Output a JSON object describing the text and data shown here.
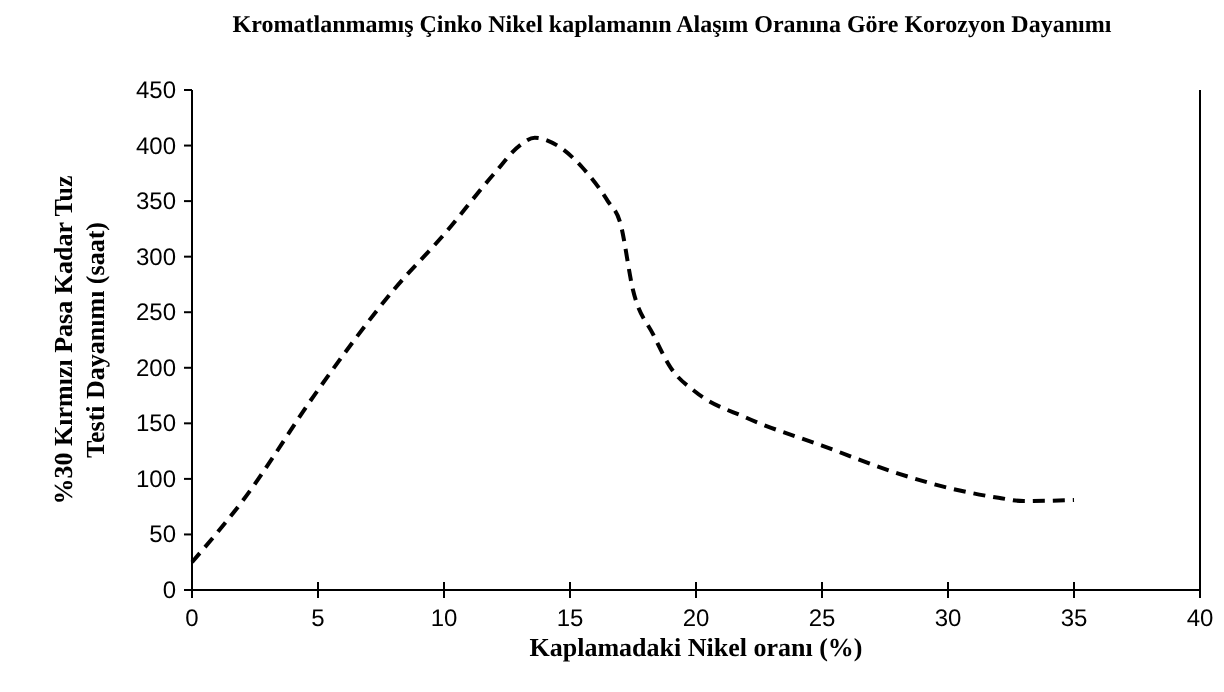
{
  "chart_data": {
    "type": "line",
    "title": "Kromatlanmamış Çinko Nikel kaplamanın Alaşım Oranına Göre Korozyon Dayanımı",
    "xlabel": "Kaplamadaki Nikel oranı (%)",
    "ylabel": "%30 Kırmızı Pasa Kadar Tuz Testi Dayanımı (saat)",
    "x": [
      0,
      2,
      5,
      8,
      10,
      12,
      13,
      13.6,
      14.5,
      15.5,
      16.5,
      17,
      17.5,
      18.3,
      19,
      20,
      22,
      25,
      28,
      30,
      32,
      33,
      35
    ],
    "series": [
      {
        "color": "#000000",
        "line_style": "dashed",
        "values": [
          25,
          80,
          180,
          270,
          320,
          375,
          400,
          407,
          400,
          380,
          350,
          330,
          270,
          230,
          200,
          178,
          155,
          130,
          105,
          92,
          83,
          80,
          81
        ]
      }
    ],
    "xlim": [
      0,
      40
    ],
    "xticks": [
      0,
      5,
      10,
      15,
      20,
      25,
      30,
      35,
      40
    ],
    "ylim": [
      0,
      450
    ],
    "yticks": [
      0,
      50,
      100,
      150,
      200,
      250,
      300,
      350,
      400,
      450
    ],
    "grid": false
  }
}
